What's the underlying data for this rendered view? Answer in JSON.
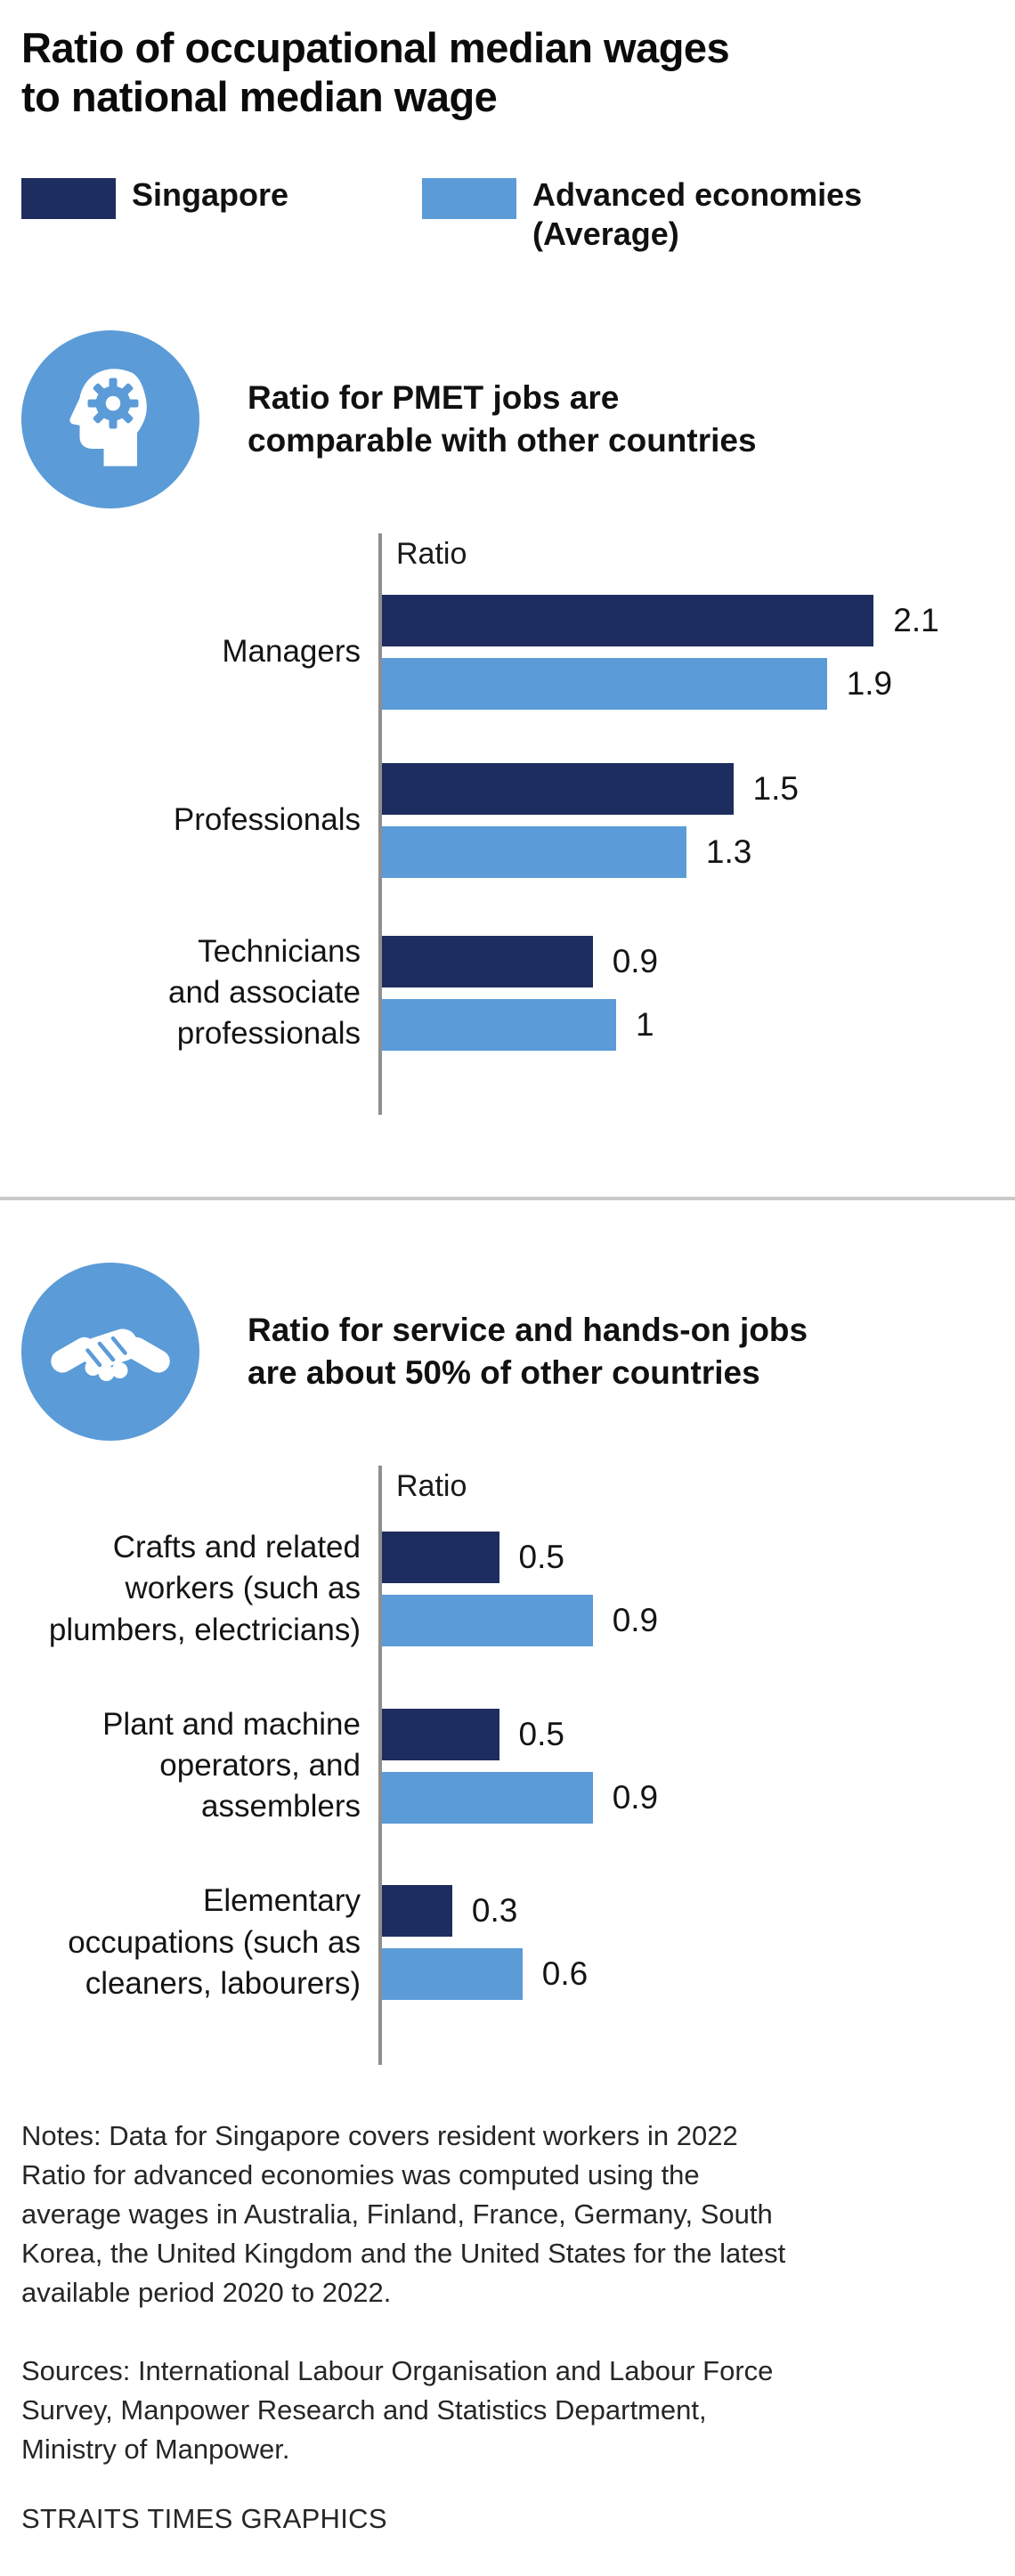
{
  "page": {
    "title": "Ratio of occupational median wages\nto national median wage",
    "notes": "Notes: Data for Singapore covers resident workers in 2022\nRatio for advanced economies was computed using the\naverage wages in Australia, Finland, France, Germany, South\nKorea, the United Kingdom and the United States for the latest\navailable period 2020 to 2022.",
    "sources": "Sources: International Labour Organisation and Labour Force\nSurvey, Manpower Research and Statistics Department,\nMinistry of Manpower.",
    "credit": "STRAITS TIMES GRAPHICS"
  },
  "colors": {
    "singapore": "#1e2d5f",
    "advanced": "#5b9bd8",
    "axis": "#8f8f8f",
    "divider": "#c9c9c9"
  },
  "legend": {
    "items": [
      {
        "label": "Singapore",
        "color_key": "singapore"
      },
      {
        "label": "Advanced economies\n(Average)",
        "color_key": "advanced"
      }
    ]
  },
  "chart_data": [
    {
      "type": "bar",
      "orientation": "horizontal",
      "section_icon": "head-gear-icon",
      "section_title": "Ratio for PMET jobs are\ncomparable with other countries",
      "axis_label": "Ratio",
      "xlim": [
        0,
        2.4
      ],
      "grid": false,
      "legend_position": "top",
      "categories": [
        "Managers",
        "Professionals",
        "Technicians\nand associate\nprofessionals"
      ],
      "series": [
        {
          "name": "Singapore",
          "color_key": "singapore",
          "values": [
            2.1,
            1.5,
            0.9
          ],
          "labels": [
            "2.1",
            "1.5",
            "0.9"
          ]
        },
        {
          "name": "Advanced economies (Average)",
          "color_key": "advanced",
          "values": [
            1.9,
            1.3,
            1
          ],
          "labels": [
            "1.9",
            "1.3",
            "1"
          ]
        }
      ]
    },
    {
      "type": "bar",
      "orientation": "horizontal",
      "section_icon": "handshake-icon",
      "section_title": "Ratio for service and hands-on jobs\nare about 50% of other countries",
      "axis_label": "Ratio",
      "xlim": [
        0,
        2.4
      ],
      "grid": false,
      "legend_position": "top",
      "categories": [
        "Crafts and related\nworkers (such as\nplumbers, electricians)",
        "Plant and machine\noperators, and\nassemblers",
        "Elementary\noccupations (such as\ncleaners, labourers)"
      ],
      "series": [
        {
          "name": "Singapore",
          "color_key": "singapore",
          "values": [
            0.5,
            0.5,
            0.3
          ],
          "labels": [
            "0.5",
            "0.5",
            "0.3"
          ]
        },
        {
          "name": "Advanced economies (Average)",
          "color_key": "advanced",
          "values": [
            0.9,
            0.9,
            0.6
          ],
          "labels": [
            "0.9",
            "0.9",
            "0.6"
          ]
        }
      ]
    }
  ]
}
